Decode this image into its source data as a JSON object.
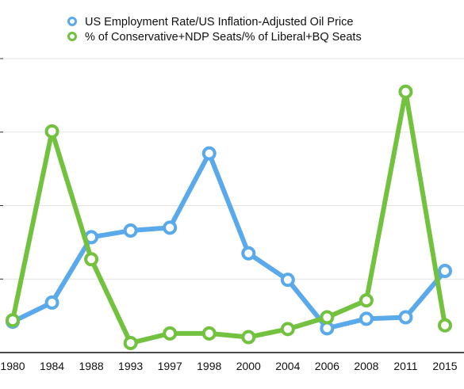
{
  "chart_data": {
    "type": "line",
    "title": "",
    "xlabel": "",
    "ylabel": "",
    "categories": [
      "1980",
      "1984",
      "1988",
      "1993",
      "1997",
      "1998",
      "2000",
      "2004",
      "2006",
      "2008",
      "2011",
      "2015"
    ],
    "ylim": [
      0,
      4
    ],
    "grid": true,
    "legend_position": "top-center",
    "series": [
      {
        "name": "US Employment Rate/US Inflation-Adjusted Oil Price",
        "color": "#5aa9ea",
        "values": [
          0.42,
          0.68,
          1.57,
          1.66,
          1.7,
          2.71,
          1.35,
          0.99,
          0.33,
          0.46,
          0.48,
          1.11
        ]
      },
      {
        "name": "% of Conservative+NDP Seats/% of Liberal+BQ Seats",
        "color": "#72c240",
        "values": [
          0.44,
          3.01,
          1.27,
          0.13,
          0.26,
          0.26,
          0.21,
          0.32,
          0.48,
          0.71,
          3.55,
          0.37
        ]
      }
    ]
  }
}
